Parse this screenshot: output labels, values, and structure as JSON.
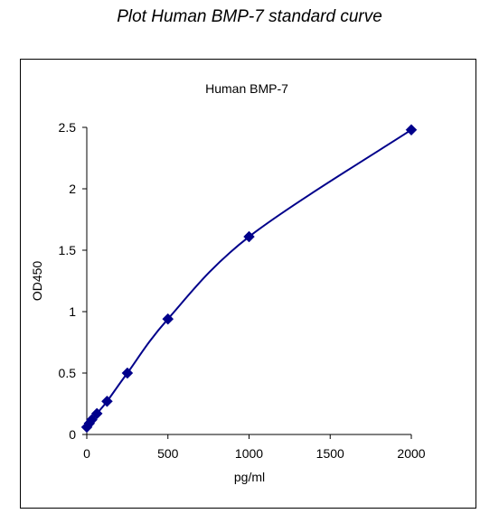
{
  "page": {
    "title": "Plot Human BMP-7 standard curve"
  },
  "chart_data": {
    "type": "scatter",
    "title": "Human BMP-7",
    "xlabel": "pg/ml",
    "ylabel": "OD450",
    "xlim": [
      0,
      2000
    ],
    "ylim": [
      0,
      2.5
    ],
    "x_ticks": [
      0,
      500,
      1000,
      1500,
      2000
    ],
    "y_ticks": [
      0,
      0.5,
      1,
      1.5,
      2,
      2.5
    ],
    "x_tick_labels": [
      "0",
      "500",
      "1000",
      "1500",
      "2000"
    ],
    "y_tick_labels": [
      "0",
      "0.5",
      "1",
      "1.5",
      "2",
      "2.5"
    ],
    "grid": false,
    "marker_color": "#00008B",
    "line_color": "#00008B",
    "series": [
      {
        "x": [
          0,
          15.6,
          31.2,
          62.5,
          125,
          250,
          500,
          1000,
          2000
        ],
        "y": [
          0.06,
          0.09,
          0.12,
          0.17,
          0.27,
          0.5,
          0.94,
          1.61,
          2.48
        ]
      }
    ]
  }
}
